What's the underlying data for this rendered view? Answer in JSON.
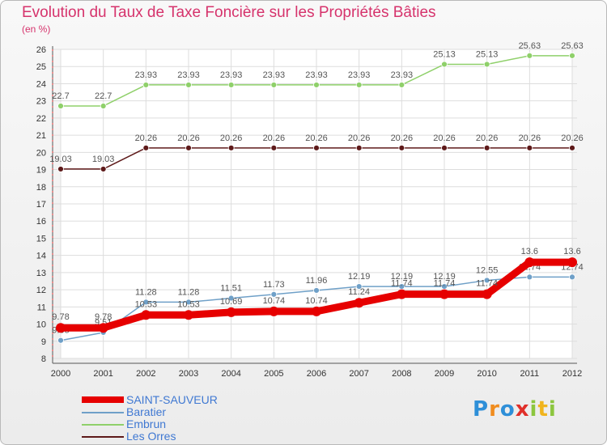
{
  "header": {
    "title": "Evolution du Taux de Taxe Foncière sur les Propriétés Bâties",
    "unit": "(en %)"
  },
  "chart_data": {
    "type": "line",
    "title": "Evolution du Taux de Taxe Foncière sur les Propriétés Bâties",
    "ylabel": "(en %)",
    "xlabel": "",
    "ylim": [
      8,
      26
    ],
    "yticks": [
      8,
      9,
      10,
      11,
      12,
      13,
      14,
      15,
      16,
      17,
      18,
      19,
      20,
      21,
      22,
      23,
      24,
      25,
      26
    ],
    "grid": true,
    "categories": [
      "2000",
      "2001",
      "2002",
      "2003",
      "2004",
      "2005",
      "2006",
      "2007",
      "2008",
      "2009",
      "2010",
      "2011",
      "2012"
    ],
    "series": [
      {
        "name": "Les Orres",
        "color": "#5e1a1a",
        "values": [
          19.03,
          19.03,
          20.26,
          20.26,
          20.26,
          20.26,
          20.26,
          20.26,
          20.26,
          20.26,
          20.26,
          20.26,
          20.26
        ],
        "labels": [
          "19.03",
          "19.03",
          "20.26",
          "20.26",
          "20.26",
          "20.26",
          "20.26",
          "20.26",
          "20.26",
          "20.26",
          "20.26",
          "20.26",
          "20.26"
        ]
      },
      {
        "name": "Embrun",
        "color": "#8fd06a",
        "values": [
          22.7,
          22.7,
          23.93,
          23.93,
          23.93,
          23.93,
          23.93,
          23.93,
          23.93,
          25.13,
          25.13,
          25.63,
          25.63
        ],
        "labels": [
          "22.7",
          "22.7",
          "23.93",
          "23.93",
          "23.93",
          "23.93",
          "23.93",
          "23.93",
          "23.93",
          "25.13",
          "25.13",
          "25.63",
          "25.63"
        ]
      },
      {
        "name": "Baratier",
        "color": "#6fa0c8",
        "values": [
          9.05,
          9.51,
          11.28,
          11.28,
          11.51,
          11.73,
          11.96,
          12.19,
          12.19,
          12.19,
          12.55,
          12.74,
          12.74
        ],
        "labels": [
          "9.05",
          "9.51",
          "11.28",
          "11.28",
          "11.51",
          "11.73",
          "11.96",
          "12.19",
          "12.19",
          "12.19",
          "12.55",
          "12.74",
          "12.74"
        ]
      },
      {
        "name": "SAINT-SAUVEUR",
        "color": "#e60000",
        "values": [
          9.78,
          9.78,
          10.53,
          10.53,
          10.69,
          10.74,
          10.74,
          11.24,
          11.74,
          11.74,
          11.74,
          13.6,
          13.6
        ],
        "labels": [
          "9.78",
          "9.78",
          "10.53",
          "10.53",
          "10.69",
          "10.74",
          "10.74",
          "11.24",
          "11.74",
          "11.74",
          "11.74",
          "13.6",
          "13.6"
        ]
      }
    ],
    "legend": {
      "placement": "bottom-left",
      "entries": [
        "SAINT-SAUVEUR",
        "Baratier",
        "Embrun",
        "Les Orres"
      ]
    }
  },
  "logo": {
    "letters": [
      {
        "char": "P",
        "color": "#2e8fd8"
      },
      {
        "char": "r",
        "color": "#f08c1e"
      },
      {
        "char": "o",
        "color": "#2e8fd8"
      },
      {
        "char": "x",
        "color": "#e0302a"
      },
      {
        "char": "i",
        "color": "#8cc63f"
      },
      {
        "char": "t",
        "color": "#f0b41e"
      },
      {
        "char": "i",
        "color": "#8cc63f"
      }
    ]
  }
}
